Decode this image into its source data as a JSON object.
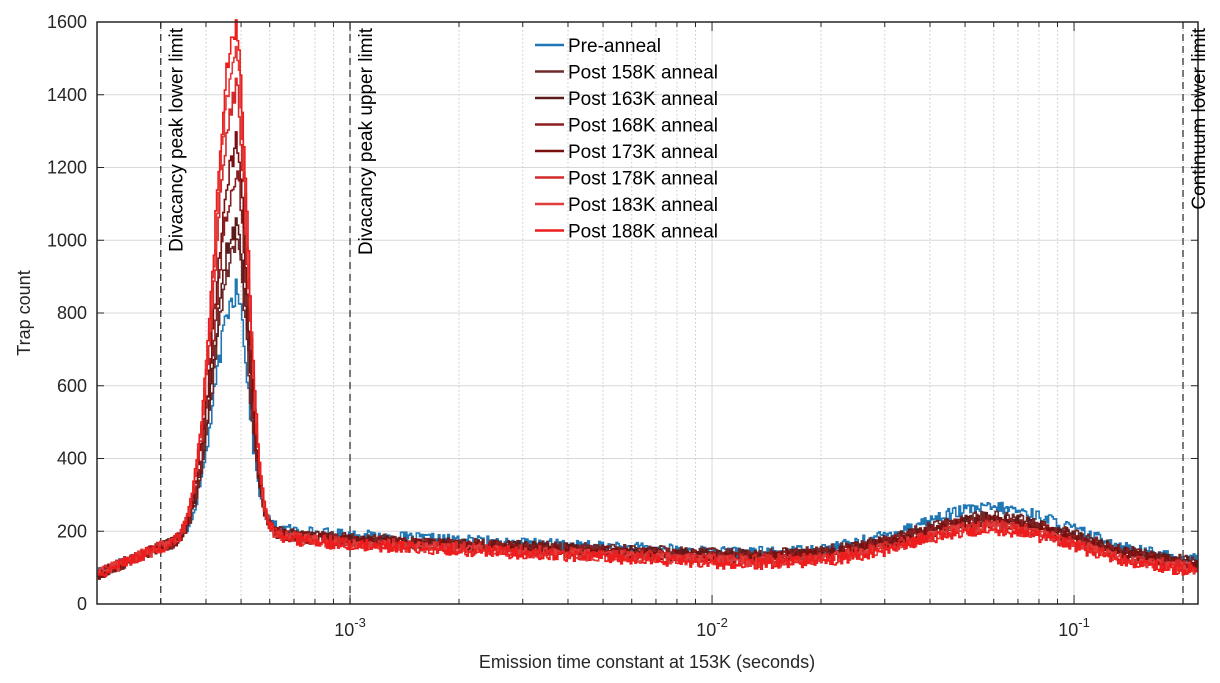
{
  "chart_data": {
    "type": "line",
    "xlabel": "Emission time constant at 153K (seconds)",
    "ylabel": "Trap count",
    "xscale": "log",
    "xlim": [
      0.0002,
      0.22
    ],
    "ylim": [
      0,
      1600
    ],
    "yticks": [
      0,
      200,
      400,
      600,
      800,
      1000,
      1200,
      1400,
      1600
    ],
    "xticks_major": [
      {
        "value": 0.001,
        "base": "10",
        "exp": "-3"
      },
      {
        "value": 0.01,
        "base": "10",
        "exp": "-2"
      },
      {
        "value": 0.1,
        "base": "10",
        "exp": "-1"
      }
    ],
    "grid": true,
    "legend": {
      "placement": "top-center"
    },
    "annotations": [
      {
        "text": "Divacancy peak lower limit",
        "x": 0.0003
      },
      {
        "text": "Divacancy peak upper limit",
        "x": 0.001
      },
      {
        "text": "Continuum lower limit",
        "x": 0.2
      }
    ],
    "series": [
      {
        "name": "Pre-anneal",
        "color": "#1f77b4",
        "peak": 800,
        "baseline_left": 85,
        "floor": 140,
        "mid_level": 195,
        "hump": 265
      },
      {
        "name": "Post 158K anneal",
        "color": "#6e2a2a",
        "peak": 930,
        "baseline_left": 80,
        "floor": 135,
        "mid_level": 185,
        "hump": 240
      },
      {
        "name": "Post 163K anneal",
        "color": "#5c1a1a",
        "peak": 1000,
        "baseline_left": 80,
        "floor": 133,
        "mid_level": 182,
        "hump": 235
      },
      {
        "name": "Post 168K anneal",
        "color": "#8b1f1f",
        "peak": 1120,
        "baseline_left": 80,
        "floor": 128,
        "mid_level": 180,
        "hump": 230
      },
      {
        "name": "Post 173K anneal",
        "color": "#7a0f0f",
        "peak": 1200,
        "baseline_left": 80,
        "floor": 125,
        "mid_level": 178,
        "hump": 225
      },
      {
        "name": "Post 178K anneal",
        "color": "#d42a2a",
        "peak": 1360,
        "baseline_left": 80,
        "floor": 120,
        "mid_level": 175,
        "hump": 215
      },
      {
        "name": "Post 183K anneal",
        "color": "#e03c3c",
        "peak": 1460,
        "baseline_left": 80,
        "floor": 115,
        "mid_level": 172,
        "hump": 210
      },
      {
        "name": "Post 188K anneal",
        "color": "#ee1d1d",
        "peak": 1545,
        "baseline_left": 80,
        "floor": 110,
        "mid_level": 170,
        "hump": 205
      }
    ],
    "peak_position": 0.00048,
    "hump_position": 0.06
  }
}
